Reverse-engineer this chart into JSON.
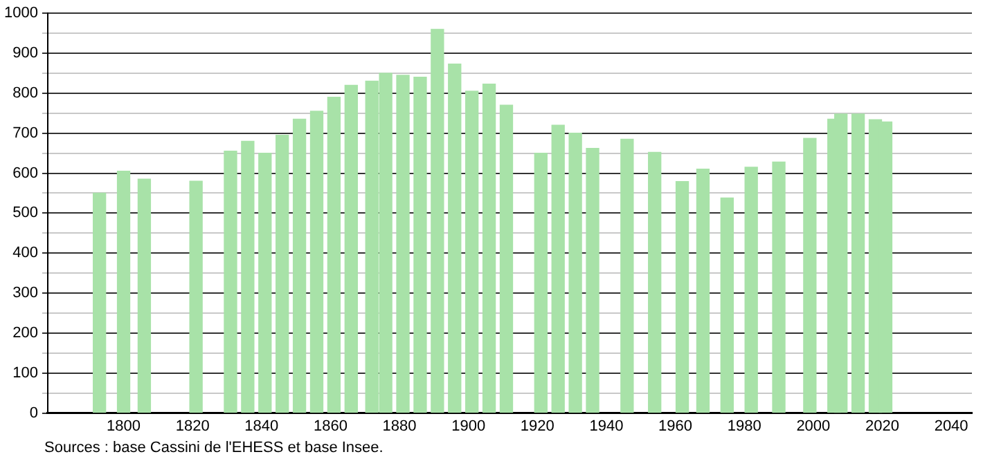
{
  "chart_data": {
    "type": "bar",
    "color": "#a8e2a8",
    "x": [
      1793,
      1800,
      1806,
      1821,
      1831,
      1836,
      1841,
      1846,
      1851,
      1856,
      1861,
      1866,
      1872,
      1876,
      1881,
      1886,
      1891,
      1896,
      1901,
      1906,
      1911,
      1921,
      1926,
      1931,
      1936,
      1946,
      1954,
      1962,
      1968,
      1975,
      1982,
      1990,
      1999,
      2006,
      2008,
      2013,
      2018,
      2021
    ],
    "values": [
      550,
      605,
      585,
      580,
      655,
      680,
      650,
      695,
      735,
      755,
      790,
      820,
      830,
      850,
      845,
      840,
      960,
      873,
      805,
      823,
      770,
      650,
      720,
      700,
      662,
      685,
      652,
      579,
      610,
      538,
      615,
      628,
      687,
      735,
      748,
      748,
      734,
      728
    ],
    "xlim": [
      1778,
      2046
    ],
    "xticks": [
      1800,
      1820,
      1840,
      1860,
      1880,
      1900,
      1920,
      1940,
      1960,
      1980,
      2000,
      2020,
      2040
    ],
    "ylim": [
      0,
      1000
    ],
    "yticks": [
      0,
      {
        "value": 50,
        "label": null
      },
      100,
      {
        "value": 150,
        "label": null
      },
      200,
      {
        "value": 250,
        "label": null
      },
      300,
      {
        "value": 350,
        "label": null
      },
      400,
      {
        "value": 450,
        "label": null
      },
      500,
      {
        "value": 550,
        "label": null
      },
      600,
      {
        "value": 650,
        "label": null
      },
      700,
      {
        "value": 750,
        "label": null
      },
      800,
      {
        "value": 850,
        "label": null
      },
      900,
      {
        "value": 950,
        "label": null
      },
      1000
    ],
    "grid": "y",
    "legend": false,
    "annotations": [
      "Sources : base Cassini de l'EHESS et base Insee."
    ]
  }
}
